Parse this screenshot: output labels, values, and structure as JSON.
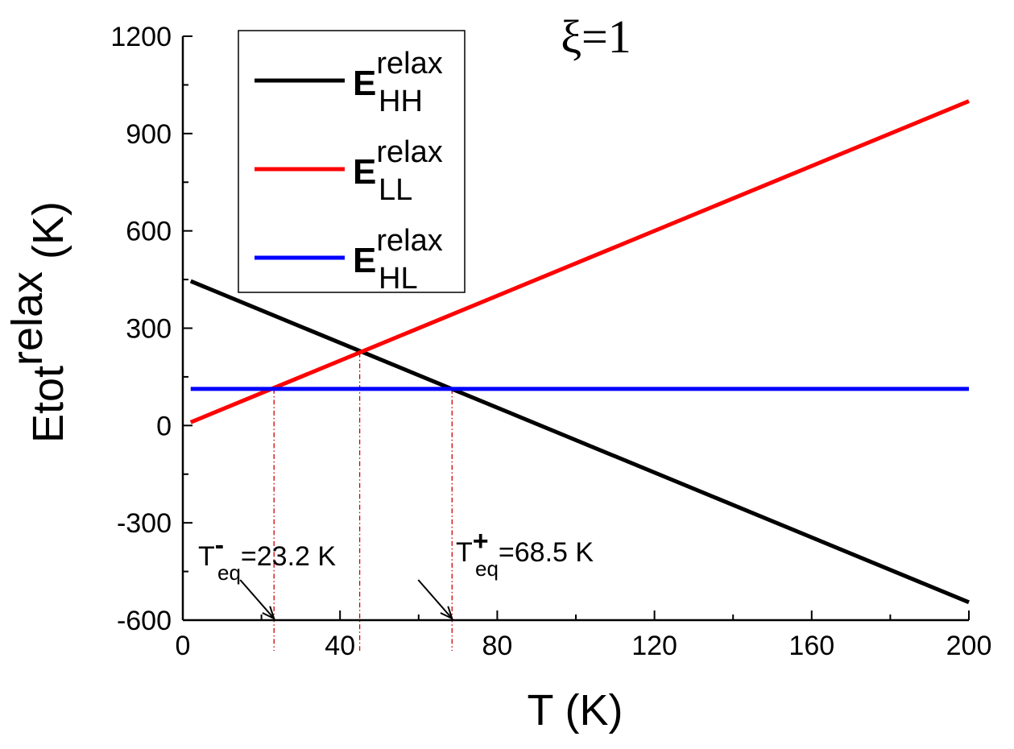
{
  "chart_data": {
    "type": "line",
    "title": "ξ=1",
    "xlabel": "T (K)",
    "ylabel": {
      "main": "Etot",
      "superscript": "relax",
      "unit": " (K)"
    },
    "xlim": [
      0,
      200
    ],
    "ylim": [
      -600,
      1200
    ],
    "x_ticks": [
      0,
      40,
      80,
      120,
      160,
      200
    ],
    "x_tick_labels": [
      "0",
      "40",
      "80",
      "120",
      "160",
      "200"
    ],
    "y_ticks": [
      -600,
      -300,
      0,
      300,
      600,
      900,
      1200
    ],
    "y_tick_labels": [
      "-600",
      "-300",
      "0",
      "300",
      "600",
      "900",
      "1200"
    ],
    "grid": false,
    "legend_position": "top-left",
    "series": [
      {
        "name": "E",
        "sup": "relax",
        "sub": "HH",
        "color": "#000000",
        "x": [
          2,
          200
        ],
        "y": [
          445,
          -545
        ]
      },
      {
        "name": "E",
        "sup": "relax",
        "sub": "LL",
        "color": "#ff0000",
        "x": [
          2,
          200
        ],
        "y": [
          10,
          1000
        ]
      },
      {
        "name": "E",
        "sup": "relax",
        "sub": "HL",
        "color": "#0000ff",
        "x": [
          2,
          200
        ],
        "y": [
          113,
          113
        ]
      }
    ],
    "reference_lines": [
      {
        "x": 23.2,
        "y_from": 113,
        "color": "#cc0000"
      },
      {
        "x": 45,
        "y_from": 225,
        "color": "#cc0000"
      },
      {
        "x": 68.5,
        "y_from": 113,
        "color": "#cc0000"
      }
    ],
    "annotations": [
      {
        "base": "T",
        "sup": "-",
        "sub": "eq",
        "value": "=23.2 K",
        "target_x": 23.2
      },
      {
        "base": "T",
        "sup": "+",
        "sub": "eq",
        "value": "=68.5 K",
        "target_x": 68.5
      }
    ]
  }
}
